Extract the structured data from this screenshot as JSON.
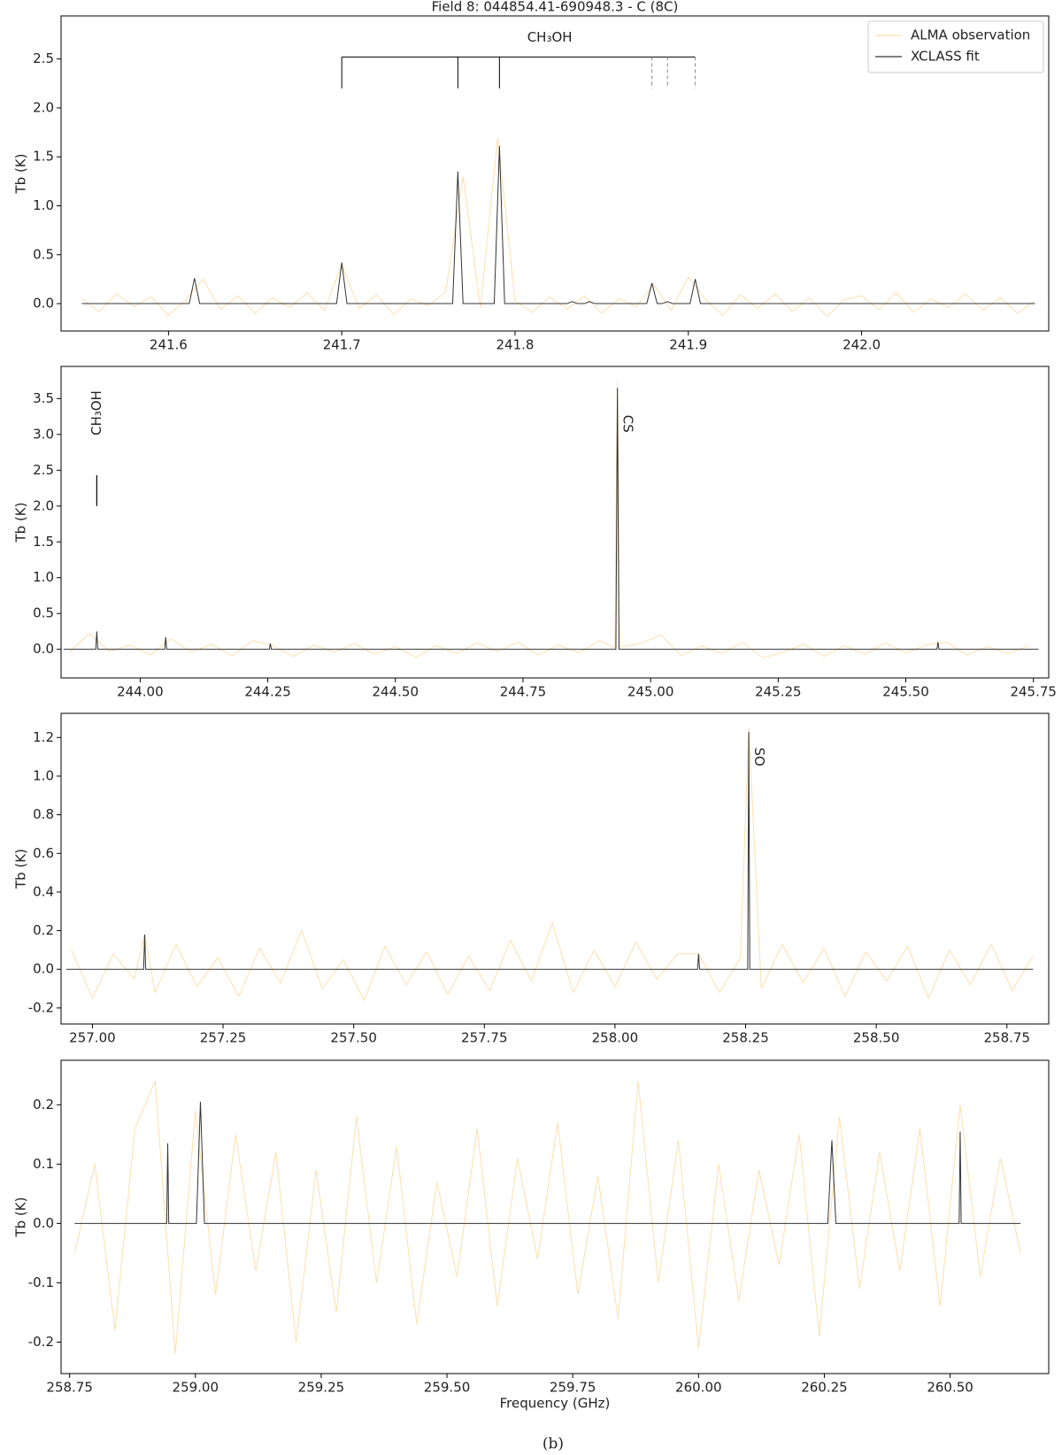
{
  "chart_data": [
    {
      "type": "line",
      "title": "Field 8: 044854.41-690948.3 - C (8C)",
      "ylabel": "Tb (K)",
      "legend": "upper right",
      "xlim": [
        241.538,
        242.108
      ],
      "ylim": [
        -0.28,
        2.94
      ],
      "xticks": [
        241.6,
        241.7,
        241.8,
        241.9,
        {
          "value": 242,
          "label": "242.0"
        }
      ],
      "yticks": [
        {
          "value": 0,
          "label": "0.0"
        },
        0.5,
        {
          "value": 1,
          "label": "1.0"
        },
        1.5,
        {
          "value": 2,
          "label": "2.0"
        },
        2.5
      ],
      "series": [
        {
          "name": "ALMA observation",
          "color": "#fddfae",
          "x": [
            241.55,
            241.56,
            241.57,
            241.58,
            241.59,
            241.6,
            241.61,
            241.62,
            241.63,
            241.64,
            241.65,
            241.66,
            241.67,
            241.68,
            241.69,
            241.7,
            241.71,
            241.72,
            241.73,
            241.74,
            241.75,
            241.76,
            241.77,
            241.78,
            241.79,
            241.8,
            241.81,
            241.82,
            241.83,
            241.84,
            241.85,
            241.86,
            241.87,
            241.88,
            241.89,
            241.9,
            241.91,
            241.92,
            241.93,
            241.94,
            241.95,
            241.96,
            241.97,
            241.98,
            241.99,
            242.0,
            242.01,
            242.02,
            242.03,
            242.04,
            242.05,
            242.06,
            242.07,
            242.08,
            242.09,
            242.1
          ],
          "values": [
            0.05,
            -0.08,
            0.1,
            -0.03,
            0.07,
            -0.12,
            0.04,
            0.25,
            -0.06,
            0.08,
            -0.1,
            0.06,
            -0.04,
            0.11,
            -0.07,
            0.4,
            -0.05,
            0.09,
            -0.11,
            0.05,
            -0.02,
            0.12,
            1.3,
            -0.04,
            1.7,
            0.03,
            -0.09,
            0.07,
            -0.06,
            0.08,
            -0.1,
            0.05,
            -0.03,
            0.2,
            -0.07,
            0.27,
            0.04,
            -0.12,
            0.09,
            -0.05,
            0.1,
            -0.08,
            0.06,
            -0.13,
            0.04,
            0.08,
            -0.06,
            0.11,
            -0.09,
            0.05,
            -0.04,
            0.1,
            -0.07,
            0.06,
            -0.1,
            0.03
          ]
        },
        {
          "name": "XCLASS fit",
          "color": "#333333",
          "x": [
            241.55,
            241.612,
            241.615,
            241.618,
            241.697,
            241.7,
            241.703,
            241.764,
            241.767,
            241.77,
            241.788,
            241.791,
            241.794,
            241.83,
            241.833,
            241.836,
            241.84,
            241.843,
            241.846,
            241.876,
            241.879,
            241.882,
            241.885,
            241.888,
            241.891,
            241.901,
            241.904,
            241.907,
            242.1
          ],
          "values": [
            0,
            0,
            0.26,
            0,
            0,
            0.42,
            0,
            0,
            1.35,
            0,
            0,
            1.61,
            0,
            0,
            0.02,
            0,
            0,
            0.02,
            0,
            0,
            0.21,
            0,
            0,
            0.02,
            0,
            0,
            0.25,
            0,
            0
          ]
        }
      ],
      "bracket": {
        "label": "CH₃OH",
        "label_x": 241.82,
        "label_y": 2.72,
        "y": 2.52,
        "tick_bottom": 2.2,
        "solid": [
          241.7,
          241.767,
          241.791
        ],
        "dashed": [
          241.879,
          241.888,
          241.904
        ]
      }
    },
    {
      "type": "line",
      "ylabel": "Tb (K)",
      "xlim": [
        243.845,
        245.78
      ],
      "ylim": [
        -0.4,
        3.95
      ],
      "xticks": [
        {
          "value": 244,
          "label": "244.00"
        },
        244.25,
        {
          "value": 244.5,
          "label": "244.50"
        },
        244.75,
        {
          "value": 245,
          "label": "245.00"
        },
        245.25,
        {
          "value": 245.5,
          "label": "245.50"
        },
        245.75
      ],
      "yticks": [
        {
          "value": 0,
          "label": "0.0"
        },
        0.5,
        {
          "value": 1,
          "label": "1.0"
        },
        1.5,
        {
          "value": 2,
          "label": "2.0"
        },
        2.5,
        {
          "value": 3,
          "label": "3.0"
        },
        3.5
      ],
      "series": [
        {
          "name": "ALMA observation",
          "color": "#fddfae",
          "x": [
            243.86,
            243.9,
            243.94,
            243.98,
            244.02,
            244.06,
            244.1,
            244.14,
            244.18,
            244.22,
            244.26,
            244.3,
            244.34,
            244.38,
            244.42,
            244.46,
            244.5,
            244.54,
            244.58,
            244.62,
            244.66,
            244.7,
            244.74,
            244.78,
            244.82,
            244.86,
            244.9,
            244.93,
            244.935,
            244.94,
            244.98,
            245.02,
            245.06,
            245.1,
            245.14,
            245.18,
            245.22,
            245.26,
            245.3,
            245.34,
            245.38,
            245.42,
            245.46,
            245.5,
            245.54,
            245.58,
            245.62,
            245.66,
            245.7,
            245.74
          ],
          "values": [
            -0.05,
            0.22,
            -0.03,
            0.06,
            -0.08,
            0.15,
            -0.04,
            0.07,
            -0.09,
            0.12,
            0.05,
            -0.1,
            0.06,
            -0.04,
            0.08,
            -0.07,
            0.04,
            -0.11,
            0.05,
            -0.06,
            0.09,
            -0.03,
            0.1,
            -0.08,
            0.06,
            -0.05,
            0.12,
            0.02,
            3.75,
            0.03,
            0.08,
            0.2,
            -0.09,
            0.05,
            -0.06,
            0.1,
            -0.12,
            -0.04,
            0.07,
            -0.1,
            0.05,
            -0.07,
            0.09,
            -0.05,
            0.06,
            0.1,
            -0.08,
            0.04,
            -0.06,
            0.05
          ]
        },
        {
          "name": "XCLASS fit",
          "color": "#333333",
          "x": [
            243.85,
            243.913,
            243.915,
            243.917,
            244.048,
            244.05,
            244.052,
            244.253,
            244.255,
            244.257,
            244.932,
            244.935,
            244.938,
            245.561,
            245.563,
            245.565,
            245.76
          ],
          "values": [
            0,
            0,
            0.25,
            0,
            0,
            0.17,
            0,
            0,
            0.08,
            0,
            0,
            3.65,
            0,
            0,
            0.1,
            0,
            0
          ]
        }
      ],
      "annotations": [
        {
          "text": "CH₃OH",
          "x": 243.915,
          "y": 3.3,
          "rotation": 90
        },
        {
          "text": "CS",
          "x": 244.955,
          "y": 3.15,
          "rotation": -90
        }
      ],
      "marker_lines": [
        {
          "x": 243.915,
          "y0": 2.0,
          "y1": 2.43
        }
      ]
    },
    {
      "type": "line",
      "ylabel": "Tb (K)",
      "xlim": [
        256.94,
        258.83
      ],
      "ylim": [
        -0.283,
        1.325
      ],
      "xticks": [
        {
          "value": 257,
          "label": "257.00"
        },
        257.25,
        {
          "value": 257.5,
          "label": "257.50"
        },
        257.75,
        {
          "value": 258,
          "label": "258.00"
        },
        258.25,
        {
          "value": 258.5,
          "label": "258.50"
        },
        258.75
      ],
      "yticks": [
        -0.2,
        {
          "value": 0,
          "label": "0.0"
        },
        0.2,
        0.4,
        0.6,
        0.8,
        {
          "value": 1,
          "label": "1.0"
        },
        1.2
      ],
      "series": [
        {
          "name": "ALMA observation",
          "color": "#fddfae",
          "x": [
            256.96,
            257.0,
            257.04,
            257.08,
            257.1,
            257.12,
            257.16,
            257.2,
            257.24,
            257.28,
            257.32,
            257.36,
            257.4,
            257.44,
            257.48,
            257.52,
            257.56,
            257.6,
            257.64,
            257.68,
            257.72,
            257.76,
            257.8,
            257.84,
            257.88,
            257.92,
            257.96,
            258.0,
            258.04,
            258.08,
            258.12,
            258.16,
            258.2,
            258.24,
            258.256,
            258.28,
            258.32,
            258.36,
            258.4,
            258.44,
            258.48,
            258.52,
            258.56,
            258.6,
            258.64,
            258.68,
            258.72,
            258.76,
            258.8
          ],
          "values": [
            0.1,
            -0.15,
            0.08,
            -0.05,
            0.18,
            -0.12,
            0.13,
            -0.09,
            0.06,
            -0.14,
            0.11,
            -0.07,
            0.2,
            -0.1,
            0.05,
            -0.16,
            0.12,
            -0.08,
            0.09,
            -0.13,
            0.07,
            -0.11,
            0.15,
            -0.06,
            0.24,
            -0.12,
            0.1,
            -0.09,
            0.14,
            -0.05,
            0.08,
            0.08,
            -0.12,
            0.06,
            1.25,
            -0.1,
            0.13,
            -0.07,
            0.11,
            -0.14,
            0.09,
            -0.06,
            0.12,
            -0.15,
            0.1,
            -0.08,
            0.13,
            -0.11,
            0.07
          ]
        },
        {
          "name": "XCLASS fit",
          "color": "#333333",
          "x": [
            256.95,
            257.098,
            257.1,
            257.102,
            258.158,
            258.16,
            258.162,
            258.254,
            258.256,
            258.258,
            258.8
          ],
          "values": [
            0,
            0,
            0.18,
            0,
            0,
            0.08,
            0,
            0,
            1.23,
            0,
            0
          ]
        }
      ],
      "annotations": [
        {
          "text": "SO",
          "x": 258.275,
          "y": 1.1,
          "rotation": -90
        }
      ]
    },
    {
      "type": "line",
      "ylabel": "Tb (K)",
      "xlabel": "Frequency (GHz)",
      "xlim": [
        258.733,
        260.696
      ],
      "ylim": [
        -0.253,
        0.275
      ],
      "xticks": [
        258.75,
        {
          "value": 259,
          "label": "259.00"
        },
        259.25,
        {
          "value": 259.5,
          "label": "259.50"
        },
        259.75,
        {
          "value": 260,
          "label": "260.00"
        },
        260.25,
        {
          "value": 260.5,
          "label": "260.50"
        }
      ],
      "yticks": [
        -0.2,
        -0.1,
        {
          "value": 0,
          "label": "0.0"
        },
        0.1,
        0.2
      ],
      "series": [
        {
          "name": "ALMA observation",
          "color": "#fddfae",
          "x": [
            258.76,
            258.8,
            258.84,
            258.88,
            258.92,
            258.96,
            259.0,
            259.04,
            259.08,
            259.12,
            259.16,
            259.2,
            259.24,
            259.28,
            259.32,
            259.36,
            259.4,
            259.44,
            259.48,
            259.52,
            259.56,
            259.6,
            259.64,
            259.68,
            259.72,
            259.76,
            259.8,
            259.84,
            259.88,
            259.92,
            259.96,
            260.0,
            260.04,
            260.08,
            260.12,
            260.16,
            260.2,
            260.24,
            260.28,
            260.32,
            260.36,
            260.4,
            260.44,
            260.48,
            260.52,
            260.56,
            260.6,
            260.64
          ],
          "values": [
            -0.05,
            0.1,
            -0.18,
            0.16,
            0.24,
            -0.22,
            0.19,
            -0.12,
            0.15,
            -0.08,
            0.12,
            -0.2,
            0.09,
            -0.15,
            0.18,
            -0.1,
            0.13,
            -0.17,
            0.07,
            -0.09,
            0.16,
            -0.14,
            0.11,
            -0.06,
            0.17,
            -0.12,
            0.08,
            -0.16,
            0.24,
            -0.1,
            0.14,
            -0.21,
            0.1,
            -0.13,
            0.09,
            -0.07,
            0.15,
            -0.19,
            0.18,
            -0.11,
            0.12,
            -0.08,
            0.16,
            -0.14,
            0.2,
            -0.09,
            0.11,
            -0.05
          ]
        },
        {
          "name": "XCLASS fit",
          "color": "#333333",
          "x": [
            258.76,
            258.943,
            258.945,
            258.947,
            259.002,
            259.01,
            259.018,
            260.257,
            260.265,
            260.273,
            260.518,
            260.52,
            260.522,
            260.64
          ],
          "values": [
            0,
            0,
            0.135,
            0,
            0,
            0.205,
            0,
            0,
            0.14,
            0,
            0,
            0.155,
            0,
            0
          ]
        }
      ]
    }
  ],
  "caption": "(b)"
}
